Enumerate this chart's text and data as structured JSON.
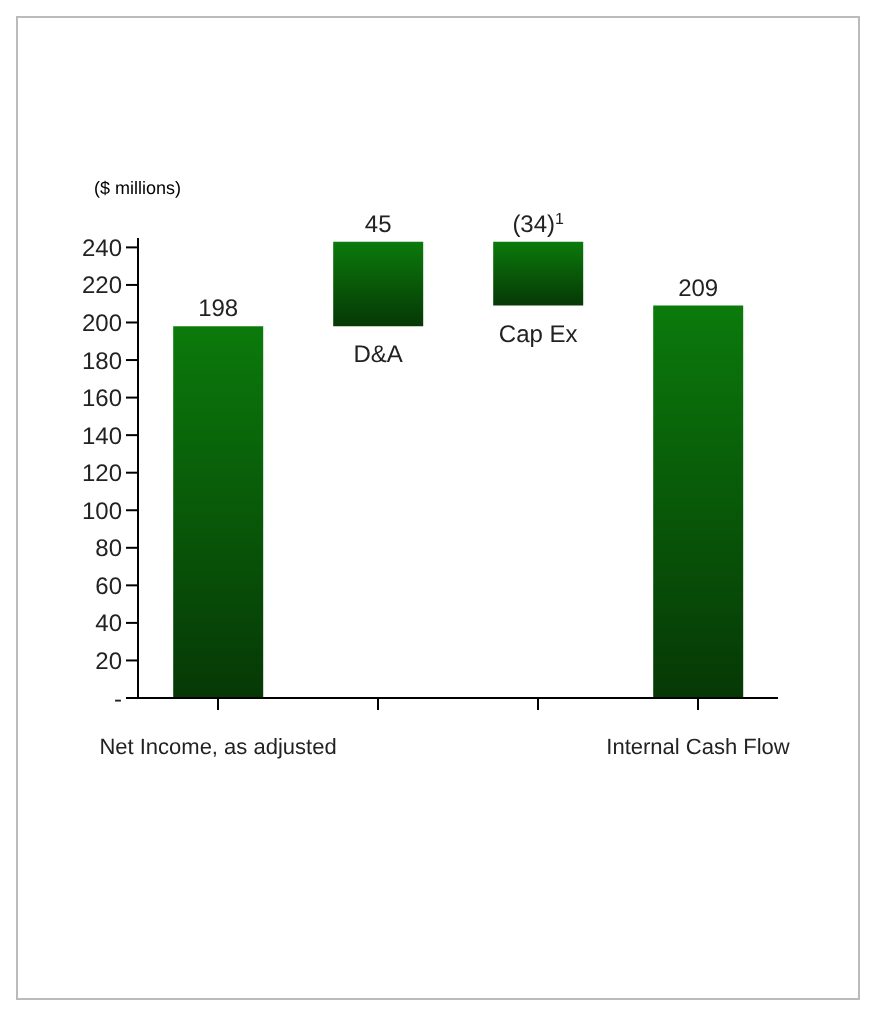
{
  "chart_data": {
    "type": "bar",
    "ylabel": "($ millions)",
    "categories": [
      "Net Income, as adjusted",
      "D&A",
      "Cap Ex",
      "Internal Cash Flow"
    ],
    "values": [
      198,
      45,
      -34,
      209
    ],
    "base": [
      0,
      198,
      243,
      0
    ],
    "value_labels": [
      "198",
      "45",
      "(34)$^{1}$",
      "209"
    ],
    "color": "#0b7a0b",
    "ylim": [
      0,
      245
    ],
    "yticks": [
      {
        "value": 0,
        "label": "-"
      },
      20,
      40,
      60,
      80,
      100,
      120,
      140,
      160,
      180,
      200,
      220,
      240
    ],
    "grid": false,
    "legend": false
  }
}
